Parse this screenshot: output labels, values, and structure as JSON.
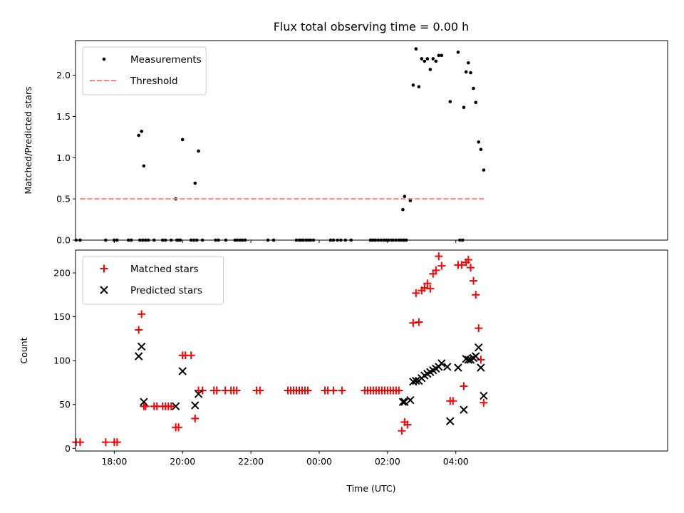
{
  "chart_data": [
    {
      "type": "scatter",
      "title": "Flux total observing time = 0.00 h",
      "xlabel": "",
      "ylabel": "Matched/Predicted stars",
      "xlim": [
        -8,
        1032
      ],
      "ylim": [
        0,
        2.42
      ],
      "xticks": [
        {
          "value": 60,
          "label": "18:00"
        },
        {
          "value": 180,
          "label": "20:00"
        },
        {
          "value": 300,
          "label": "22:00"
        },
        {
          "value": 420,
          "label": "00:00"
        },
        {
          "value": 540,
          "label": "02:00"
        },
        {
          "value": 660,
          "label": "04:00"
        }
      ],
      "yticks": [
        0.0,
        0.5,
        1.0,
        1.5,
        2.0
      ],
      "ytick_labels": [
        "0.0",
        "0.5",
        "1.0",
        "1.5",
        "2.0"
      ],
      "legend": {
        "placement": "top-left",
        "entries": [
          "Measurements",
          "Threshold"
        ]
      },
      "series": [
        {
          "name": "Measurements",
          "style": "dot",
          "color": "#000000",
          "points": [
            [
              -7,
              0
            ],
            [
              0,
              0
            ],
            [
              45,
              0
            ],
            [
              60,
              0
            ],
            [
              65,
              0
            ],
            [
              85,
              0
            ],
            [
              90,
              0
            ],
            [
              105,
              0
            ],
            [
              110,
              0
            ],
            [
              115,
              0
            ],
            [
              120,
              0
            ],
            [
              130,
              0
            ],
            [
              145,
              0
            ],
            [
              150,
              0
            ],
            [
              160,
              0
            ],
            [
              170,
              0
            ],
            [
              173,
              0
            ],
            [
              176,
              0
            ],
            [
              195,
              0
            ],
            [
              200,
              0
            ],
            [
              205,
              0
            ],
            [
              215,
              0
            ],
            [
              238,
              0
            ],
            [
              243,
              0
            ],
            [
              256,
              0
            ],
            [
              272,
              0
            ],
            [
              276,
              0
            ],
            [
              281,
              0
            ],
            [
              285,
              0
            ],
            [
              290,
              0
            ],
            [
              330,
              0
            ],
            [
              340,
              0
            ],
            [
              380,
              0
            ],
            [
              385,
              0
            ],
            [
              389,
              0
            ],
            [
              392,
              0
            ],
            [
              397,
              0
            ],
            [
              401,
              0
            ],
            [
              405,
              0
            ],
            [
              410,
              0
            ],
            [
              440,
              0
            ],
            [
              445,
              0
            ],
            [
              452,
              0
            ],
            [
              458,
              0
            ],
            [
              466,
              0
            ],
            [
              476,
              0
            ],
            [
              510,
              0
            ],
            [
              512,
              0
            ],
            [
              516,
              0
            ],
            [
              519,
              0
            ],
            [
              524,
              0
            ],
            [
              529,
              0
            ],
            [
              534,
              0
            ],
            [
              538,
              0
            ],
            [
              542,
              0
            ],
            [
              547,
              0
            ],
            [
              550,
              0
            ],
            [
              555,
              0
            ],
            [
              560,
              0
            ],
            [
              564,
              0
            ],
            [
              568,
              0
            ],
            [
              570,
              0
            ],
            [
              573,
              0
            ],
            [
              667,
              0
            ],
            [
              672,
              0
            ],
            [
              103,
              1.27
            ],
            [
              108,
              1.32
            ],
            [
              112,
              0.9
            ],
            [
              168,
              0.5
            ],
            [
              180,
              1.22
            ],
            [
              202,
              0.69
            ],
            [
              208,
              1.08
            ],
            [
              567,
              0.37
            ],
            [
              570,
              0.53
            ],
            [
              580,
              0.48
            ],
            [
              585,
              1.88
            ],
            [
              590,
              2.32
            ],
            [
              595,
              1.86
            ],
            [
              600,
              2.2
            ],
            [
              605,
              2.17
            ],
            [
              610,
              2.2
            ],
            [
              615,
              2.07
            ],
            [
              620,
              2.2
            ],
            [
              625,
              2.17
            ],
            [
              630,
              2.24
            ],
            [
              635,
              2.24
            ],
            [
              650,
              1.68
            ],
            [
              664,
              2.28
            ],
            [
              674,
              1.61
            ],
            [
              678,
              2.04
            ],
            [
              682,
              2.15
            ],
            [
              686,
              2.03
            ],
            [
              691,
              1.84
            ],
            [
              695,
              1.67
            ],
            [
              700,
              1.19
            ],
            [
              704,
              1.1
            ],
            [
              709,
              0.85
            ]
          ]
        },
        {
          "name": "Threshold",
          "style": "dashed-line",
          "color": "#ff8080",
          "points": [
            [
              0,
              0.5
            ],
            [
              709,
              0.5
            ]
          ]
        }
      ]
    },
    {
      "type": "scatter",
      "title": "",
      "xlabel": "Time (UTC)",
      "ylabel": "Count",
      "xlim": [
        -8,
        1032
      ],
      "ylim": [
        -3,
        226
      ],
      "xticks": [
        {
          "value": 60,
          "label": "18:00"
        },
        {
          "value": 180,
          "label": "20:00"
        },
        {
          "value": 300,
          "label": "22:00"
        },
        {
          "value": 420,
          "label": "00:00"
        },
        {
          "value": 540,
          "label": "02:00"
        },
        {
          "value": 660,
          "label": "04:00"
        }
      ],
      "yticks": [
        0,
        50,
        100,
        150,
        200
      ],
      "ytick_labels": [
        "0",
        "50",
        "100",
        "150",
        "200"
      ],
      "legend": {
        "placement": "top-left",
        "entries": [
          "Matched stars",
          "Predicted stars"
        ]
      },
      "series": [
        {
          "name": "Matched stars",
          "style": "plus",
          "color": "#ff0000",
          "points": [
            [
              -7,
              7
            ],
            [
              0,
              7
            ],
            [
              45,
              7
            ],
            [
              60,
              7
            ],
            [
              65,
              7
            ],
            [
              103,
              135
            ],
            [
              108,
              153
            ],
            [
              112,
              48
            ],
            [
              115,
              48
            ],
            [
              130,
              48
            ],
            [
              135,
              48
            ],
            [
              145,
              48
            ],
            [
              150,
              48
            ],
            [
              155,
              48
            ],
            [
              160,
              48
            ],
            [
              168,
              24
            ],
            [
              173,
              24
            ],
            [
              180,
              106
            ],
            [
              185,
              106
            ],
            [
              195,
              106
            ],
            [
              202,
              34
            ],
            [
              208,
              66
            ],
            [
              215,
              66
            ],
            [
              235,
              66
            ],
            [
              240,
              66
            ],
            [
              255,
              66
            ],
            [
              265,
              66
            ],
            [
              270,
              66
            ],
            [
              275,
              66
            ],
            [
              310,
              66
            ],
            [
              316,
              66
            ],
            [
              365,
              66
            ],
            [
              370,
              66
            ],
            [
              375,
              66
            ],
            [
              380,
              66
            ],
            [
              385,
              66
            ],
            [
              390,
              66
            ],
            [
              395,
              66
            ],
            [
              400,
              66
            ],
            [
              430,
              66
            ],
            [
              435,
              66
            ],
            [
              445,
              66
            ],
            [
              460,
              66
            ],
            [
              500,
              66
            ],
            [
              505,
              66
            ],
            [
              510,
              66
            ],
            [
              515,
              66
            ],
            [
              520,
              66
            ],
            [
              525,
              66
            ],
            [
              530,
              66
            ],
            [
              535,
              66
            ],
            [
              540,
              66
            ],
            [
              545,
              66
            ],
            [
              550,
              66
            ],
            [
              555,
              66
            ],
            [
              560,
              66
            ],
            [
              565,
              20
            ],
            [
              570,
              30
            ],
            [
              575,
              27
            ],
            [
              585,
              143
            ],
            [
              590,
              177
            ],
            [
              595,
              144
            ],
            [
              600,
              180
            ],
            [
              605,
              183
            ],
            [
              610,
              188
            ],
            [
              615,
              182
            ],
            [
              620,
              199
            ],
            [
              625,
              203
            ],
            [
              630,
              219
            ],
            [
              635,
              208
            ],
            [
              650,
              54
            ],
            [
              655,
              54
            ],
            [
              664,
              209
            ],
            [
              670,
              209
            ],
            [
              674,
              71
            ],
            [
              678,
              212
            ],
            [
              682,
              215
            ],
            [
              686,
              206
            ],
            [
              691,
              191
            ],
            [
              695,
              175
            ],
            [
              700,
              137
            ],
            [
              704,
              101
            ],
            [
              709,
              52
            ]
          ]
        },
        {
          "name": "Predicted stars",
          "style": "cross",
          "color": "#000000",
          "points": [
            [
              103,
              105
            ],
            [
              108,
              116
            ],
            [
              112,
              53
            ],
            [
              168,
              48
            ],
            [
              180,
              88
            ],
            [
              202,
              49
            ],
            [
              208,
              62
            ],
            [
              567,
              53
            ],
            [
              570,
              53
            ],
            [
              580,
              55
            ],
            [
              585,
              76
            ],
            [
              590,
              77
            ],
            [
              595,
              77
            ],
            [
              600,
              80
            ],
            [
              605,
              83
            ],
            [
              610,
              85
            ],
            [
              615,
              87
            ],
            [
              620,
              89
            ],
            [
              625,
              91
            ],
            [
              630,
              93
            ],
            [
              635,
              97
            ],
            [
              645,
              93
            ],
            [
              650,
              31
            ],
            [
              664,
              92
            ],
            [
              674,
              44
            ],
            [
              678,
              102
            ],
            [
              682,
              101
            ],
            [
              686,
              101
            ],
            [
              691,
              103
            ],
            [
              695,
              105
            ],
            [
              700,
              115
            ],
            [
              704,
              92
            ],
            [
              709,
              60
            ]
          ]
        }
      ]
    }
  ]
}
